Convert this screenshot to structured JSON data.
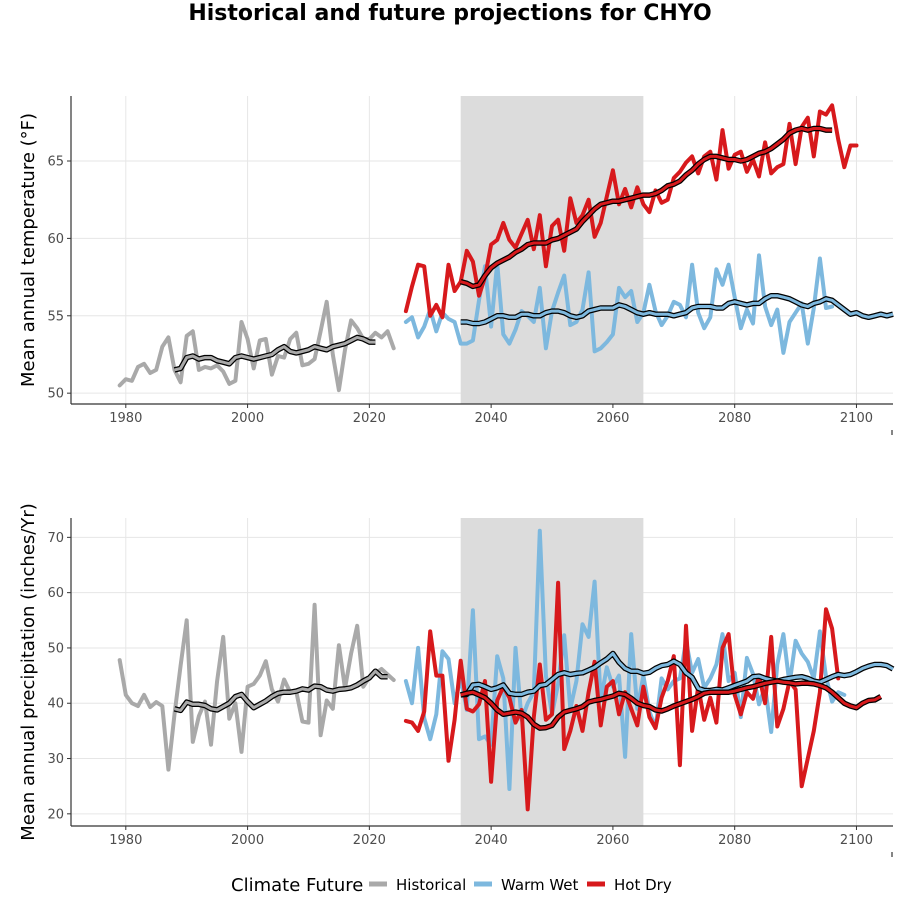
{
  "title": "Historical and future projections for CHYO",
  "colors": {
    "historical": "#a9a9a9",
    "warm_wet": "#7db8de",
    "hot_dry": "#d7191c",
    "smooth": "#000000",
    "shade": "#dcdcdc"
  },
  "legend": {
    "title": "Climate Future",
    "entries": [
      {
        "key": "historical",
        "label": "Historical"
      },
      {
        "key": "warm_wet",
        "label": "Warm Wet"
      },
      {
        "key": "hot_dry",
        "label": "Hot Dry"
      }
    ],
    "placement": "bottom"
  },
  "chart_data": [
    {
      "type": "line",
      "ylabel": "Mean annual temperature (°F)",
      "xlim": [
        1971,
        2106
      ],
      "ylim": [
        49.3,
        69.2
      ],
      "xticks": [
        1980,
        2000,
        2020,
        2040,
        2060,
        2080,
        2100
      ],
      "yticks": [
        50,
        55,
        60,
        65
      ],
      "shaded_period": [
        2035,
        2065
      ],
      "grid": true,
      "series": [
        {
          "key": "historical",
          "x_start": 1979,
          "values": [
            50.5,
            50.9,
            50.8,
            51.7,
            51.9,
            51.3,
            51.5,
            53.0,
            53.6,
            51.5,
            50.7,
            53.7,
            54.0,
            51.5,
            51.7,
            51.6,
            51.8,
            51.4,
            50.6,
            50.8,
            54.6,
            53.5,
            51.6,
            53.4,
            53.5,
            51.2,
            52.4,
            52.3,
            53.5,
            53.9,
            51.8,
            51.9,
            52.2,
            54.0,
            55.9,
            52.5,
            50.2,
            52.8,
            54.7,
            54.2,
            53.5,
            53.5,
            53.9,
            53.6,
            54.0,
            52.9
          ]
        },
        {
          "key": "warm_wet",
          "x_start": 2026,
          "values": [
            54.6,
            54.9,
            53.6,
            54.3,
            55.4,
            54.0,
            55.2,
            54.8,
            54.6,
            53.2,
            53.2,
            53.4,
            56.0,
            58.2,
            54.3,
            58.4,
            53.8,
            53.2,
            54.1,
            55.3,
            55.0,
            54.6,
            56.8,
            52.9,
            55.3,
            56.5,
            57.6,
            54.4,
            54.6,
            55.4,
            57.8,
            52.7,
            52.9,
            53.3,
            53.8,
            56.8,
            56.2,
            56.6,
            54.6,
            55.2,
            57.0,
            55.3,
            54.4,
            55.0,
            55.9,
            55.7,
            54.9,
            58.3,
            55.2,
            54.2,
            54.9,
            58.0,
            57.0,
            58.3,
            56.2,
            54.2,
            55.4,
            54.5,
            58.9,
            55.6,
            54.4,
            55.4,
            52.6,
            54.6,
            55.2,
            55.8,
            53.2,
            55.5,
            58.7,
            55.5,
            55.6
          ]
        },
        {
          "key": "hot_dry",
          "x_start": 2026,
          "values": [
            55.3,
            56.9,
            58.3,
            58.2,
            55.0,
            55.7,
            54.9,
            58.3,
            56.6,
            57.2,
            59.2,
            58.5,
            56.3,
            57.5,
            59.6,
            59.9,
            61.0,
            59.9,
            59.4,
            60.3,
            61.2,
            59.3,
            61.5,
            58.2,
            60.8,
            61.2,
            59.2,
            62.6,
            61.0,
            61.5,
            62.5,
            60.1,
            61.0,
            62.7,
            64.4,
            62.2,
            63.2,
            62.0,
            63.3,
            62.2,
            61.7,
            63.1,
            62.3,
            62.5,
            63.9,
            64.3,
            64.9,
            65.3,
            64.2,
            65.3,
            65.6,
            63.8,
            67.0,
            64.5,
            65.4,
            65.6,
            64.3,
            65.1,
            64.0,
            66.2,
            64.2,
            64.6,
            64.8,
            67.4,
            64.8,
            67.2,
            67.8,
            65.3,
            68.2,
            68.0,
            68.6,
            66.4,
            64.6,
            66.0,
            66.0
          ]
        },
        {
          "key": "historical_smooth",
          "x_start": 1988,
          "values": [
            51.5,
            51.6,
            52.3,
            52.4,
            52.2,
            52.3,
            52.3,
            52.1,
            52.0,
            51.9,
            52.3,
            52.4,
            52.3,
            52.2,
            52.3,
            52.4,
            52.5,
            52.8,
            53.0,
            52.7,
            52.6,
            52.7,
            52.8,
            53.0,
            52.9,
            52.8,
            53.0,
            53.1,
            53.2,
            53.4,
            53.6,
            53.5,
            53.3,
            53.3
          ]
        },
        {
          "key": "warm_wet_smooth",
          "x_start": 2035,
          "values": [
            54.6,
            54.6,
            54.5,
            54.5,
            54.6,
            54.8,
            55.0,
            55.0,
            54.9,
            54.9,
            55.1,
            55.1,
            55.0,
            55.0,
            55.2,
            55.3,
            55.3,
            55.2,
            55.0,
            54.9,
            55.0,
            55.3,
            55.4,
            55.5,
            55.5,
            55.5,
            55.7,
            55.6,
            55.4,
            55.2,
            55.1,
            55.2,
            55.1,
            55.1,
            55.1,
            55.0,
            55.1,
            55.2,
            55.5,
            55.6,
            55.6,
            55.6,
            55.5,
            55.5,
            55.8,
            55.9,
            55.8,
            55.7,
            55.8,
            55.8,
            56.1,
            56.3,
            56.3,
            56.2,
            56.1,
            55.9,
            55.7,
            55.6,
            55.8,
            55.9,
            56.1,
            56.0,
            55.7,
            55.4,
            55.1,
            55.2,
            55.0,
            54.9,
            55.0,
            55.1,
            55.0,
            55.1
          ]
        },
        {
          "key": "hot_dry_smooth",
          "x_start": 2035,
          "values": [
            57.2,
            57.1,
            56.9,
            57.0,
            57.6,
            58.1,
            58.4,
            58.6,
            58.8,
            59.1,
            59.3,
            59.6,
            59.7,
            59.7,
            59.7,
            59.9,
            60.0,
            60.2,
            60.4,
            60.6,
            61.1,
            61.5,
            61.9,
            62.2,
            62.3,
            62.4,
            62.4,
            62.5,
            62.6,
            62.7,
            62.8,
            62.8,
            62.9,
            63.1,
            63.4,
            63.5,
            63.7,
            64.1,
            64.4,
            64.8,
            65.1,
            65.3,
            65.3,
            65.2,
            65.1,
            65.1,
            65.0,
            65.1,
            65.3,
            65.5,
            65.6,
            65.8,
            66.1,
            66.4,
            66.8,
            67.0,
            67.1,
            67.0,
            67.1,
            67.1,
            67.0,
            67.0
          ]
        }
      ]
    },
    {
      "type": "line",
      "ylabel": "Mean annual precipitation (inches/Yr)",
      "xlim": [
        1971,
        2106
      ],
      "ylim": [
        17.8,
        73.5
      ],
      "xticks": [
        1980,
        2000,
        2020,
        2040,
        2060,
        2080,
        2100
      ],
      "yticks": [
        20,
        30,
        40,
        50,
        60,
        70
      ],
      "shaded_period": [
        2035,
        2065
      ],
      "grid": true,
      "series": [
        {
          "key": "historical",
          "x_start": 1979,
          "values": [
            47.8,
            41.5,
            40.0,
            39.5,
            41.5,
            39.3,
            40.2,
            39.5,
            28.0,
            38.0,
            46.8,
            55.0,
            33.0,
            37.7,
            40.3,
            32.5,
            44.0,
            52.0,
            37.2,
            40.0,
            31.2,
            43.0,
            43.5,
            45.0,
            47.6,
            42.5,
            40.3,
            44.3,
            42.0,
            42.1,
            36.7,
            36.5,
            57.8,
            34.2,
            40.5,
            39.0,
            50.5,
            42.7,
            49.0,
            54.0,
            43.0,
            44.7,
            45.4,
            46.2,
            45.2,
            44.2
          ]
        },
        {
          "key": "warm_wet",
          "x_start": 2026,
          "values": [
            44.0,
            40.0,
            50.0,
            37.3,
            33.5,
            38.0,
            49.4,
            48.0,
            40.0,
            44.5,
            38.8,
            56.8,
            33.5,
            34.0,
            32.5,
            48.5,
            44.5,
            24.5,
            50.0,
            37.0,
            40.0,
            42.0,
            71.2,
            45.0,
            38.0,
            43.5,
            52.3,
            39.0,
            44.0,
            54.3,
            52.0,
            62.0,
            40.5,
            46.5,
            43.0,
            45.0,
            30.3,
            52.5,
            39.0,
            45.0,
            38.5,
            35.5,
            44.5,
            42.5,
            44.0,
            44.5,
            51.3,
            45.5,
            48.0,
            42.8,
            44.5,
            47.0,
            52.5,
            44.0,
            45.5,
            37.5,
            48.2,
            45.3,
            39.8,
            43.0,
            34.8,
            47.0,
            52.5,
            43.5,
            51.3,
            49.0,
            47.5,
            44.5,
            53.0,
            44.8,
            40.3,
            42.0,
            41.5
          ]
        },
        {
          "key": "hot_dry",
          "x_start": 2026,
          "values": [
            36.8,
            36.5,
            35.0,
            38.5,
            53.0,
            45.0,
            45.0,
            29.6,
            37.0,
            47.7,
            39.0,
            38.5,
            39.8,
            44.0,
            25.8,
            40.5,
            43.0,
            41.0,
            36.5,
            38.8,
            20.8,
            37.5,
            47.0,
            37.0,
            38.0,
            61.8,
            31.7,
            35.0,
            39.5,
            35.0,
            42.0,
            47.5,
            36.0,
            43.0,
            44.0,
            38.0,
            42.0,
            39.0,
            36.0,
            43.0,
            37.5,
            35.5,
            41.0,
            44.0,
            48.5,
            28.8,
            54.0,
            35.0,
            43.0,
            37.0,
            41.0,
            36.5,
            50.0,
            52.5,
            41.5,
            38.0,
            42.0,
            40.8,
            45.0,
            40.0,
            52.0,
            35.8,
            39.0,
            44.0,
            42.5,
            25.0,
            30.0,
            35.0,
            42.0,
            57.0,
            53.5,
            44.5
          ]
        },
        {
          "key": "historical_smooth",
          "x_start": 1988,
          "values": [
            39.0,
            38.7,
            40.2,
            39.8,
            39.8,
            39.6,
            39.0,
            38.8,
            39.4,
            40.0,
            41.2,
            41.6,
            40.3,
            39.2,
            39.8,
            40.4,
            41.2,
            41.8,
            42.0,
            42.0,
            42.2,
            42.6,
            42.4,
            43.1,
            43.0,
            42.4,
            42.2,
            42.5,
            42.6,
            42.8,
            43.3,
            44.0,
            44.6,
            45.8,
            44.8,
            44.8
          ]
        },
        {
          "key": "warm_wet_smooth",
          "x_start": 2035,
          "values": [
            41.5,
            41.6,
            43.3,
            43.4,
            43.0,
            42.5,
            42.8,
            43.3,
            41.8,
            41.6,
            41.6,
            42.0,
            42.2,
            43.2,
            43.4,
            44.3,
            45.2,
            45.5,
            45.2,
            45.4,
            45.5,
            46.0,
            46.5,
            47.3,
            48.0,
            49.0,
            47.4,
            46.3,
            45.8,
            45.8,
            45.4,
            45.6,
            46.3,
            46.8,
            47.0,
            47.6,
            47.0,
            45.5,
            44.7,
            42.7,
            42.3,
            42.3,
            42.5,
            42.4,
            42.8,
            43.2,
            43.6,
            44.0,
            44.8,
            44.9,
            44.5,
            44.2,
            44.0,
            44.3,
            44.5,
            44.7,
            44.8,
            44.5,
            44.0,
            43.8,
            44.3,
            44.8,
            45.2,
            45.0,
            45.2,
            45.7,
            46.3,
            46.7,
            47.0,
            47.0,
            46.8,
            46.2
          ]
        },
        {
          "key": "hot_dry_smooth",
          "x_start": 2035,
          "values": [
            41.5,
            41.8,
            42.0,
            41.5,
            41.0,
            40.0,
            38.8,
            38.0,
            38.2,
            38.4,
            38.2,
            37.5,
            36.2,
            35.5,
            35.6,
            36.0,
            37.5,
            38.4,
            38.7,
            39.0,
            39.4,
            40.2,
            40.5,
            40.7,
            41.0,
            41.3,
            41.8,
            41.6,
            40.9,
            40.0,
            39.6,
            39.4,
            38.8,
            38.6,
            39.0,
            39.5,
            39.9,
            40.3,
            40.7,
            41.2,
            41.8,
            42.0,
            42.0,
            42.0,
            42.0,
            42.2,
            42.5,
            42.8,
            43.0,
            43.3,
            43.6,
            43.8,
            44.0,
            43.8,
            43.7,
            43.5,
            43.6,
            43.6,
            43.5,
            43.2,
            42.8,
            42.0,
            41.0,
            40.0,
            39.5,
            39.2,
            40.0,
            40.5,
            40.6,
            41.2
          ]
        }
      ]
    }
  ]
}
